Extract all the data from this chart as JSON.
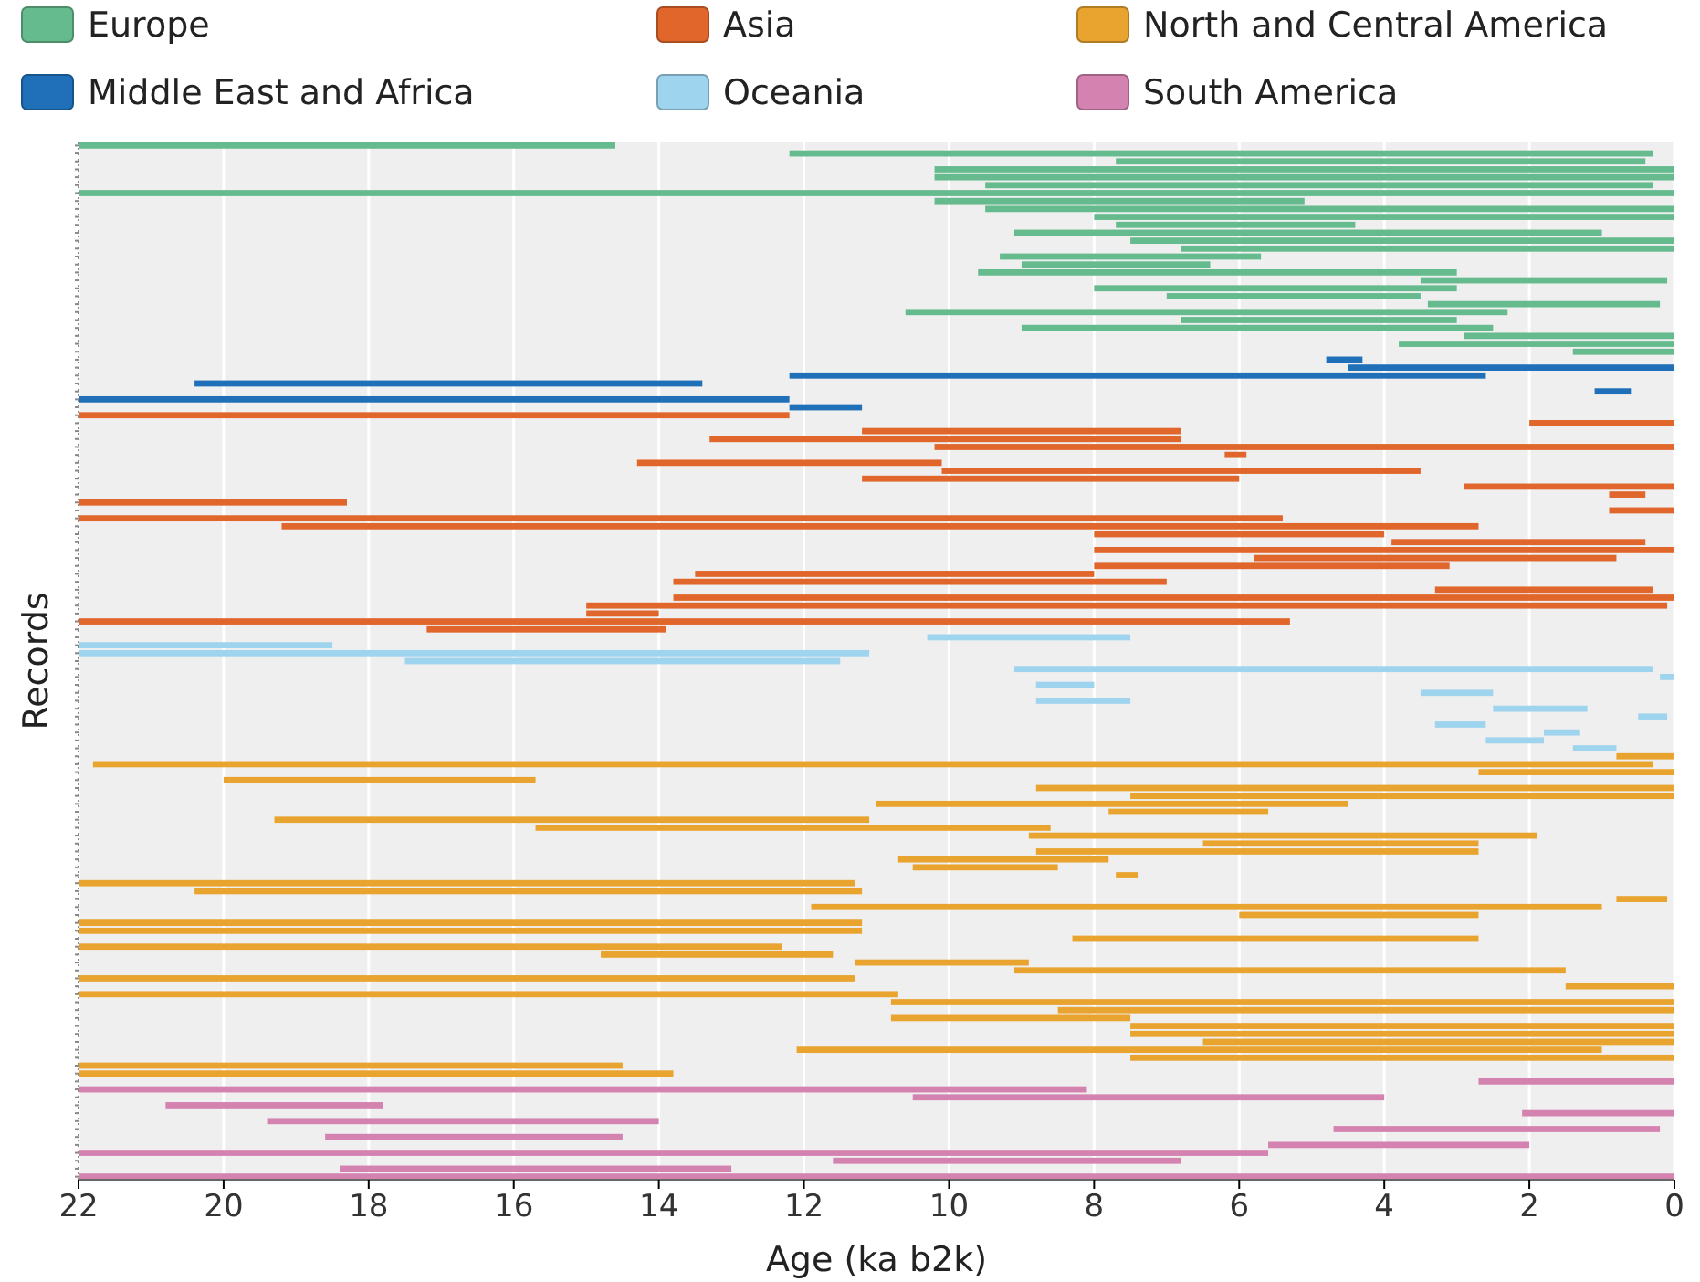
{
  "chart_data": {
    "type": "bar",
    "orientation": "horizontal",
    "xlabel": "Age (ka b2k)",
    "ylabel": "Records",
    "xlim": [
      22,
      0
    ],
    "xticks": [
      22,
      20,
      18,
      16,
      14,
      12,
      10,
      8,
      6,
      4,
      2,
      0
    ],
    "grid": "x",
    "legend": "top",
    "tick_labels": "x",
    "categories": [
      null,
      null,
      null,
      null,
      null,
      null,
      null,
      null,
      null,
      null,
      null,
      null,
      null,
      null,
      null,
      null,
      null,
      null,
      null,
      null,
      null,
      null,
      null,
      null,
      null,
      null,
      null,
      null,
      null,
      null,
      null,
      null,
      null,
      null,
      null,
      null,
      null,
      null,
      null,
      null,
      null,
      null,
      null,
      null,
      null,
      null,
      null,
      null,
      null,
      null,
      null,
      null,
      null,
      null,
      null,
      null,
      null,
      null,
      null,
      null,
      null,
      null,
      null,
      null,
      null,
      null,
      null,
      null,
      null,
      null,
      null,
      null,
      null,
      null,
      null,
      null,
      null,
      null,
      null,
      null,
      null,
      null,
      null,
      null,
      null,
      null,
      null,
      null,
      null,
      null,
      null,
      null,
      null,
      null,
      null,
      null,
      null,
      null,
      null,
      null,
      null,
      null,
      null,
      null,
      null,
      null,
      null,
      null,
      null,
      null,
      null,
      null,
      null,
      null,
      null,
      null,
      null,
      null,
      null,
      null,
      null,
      null,
      null,
      null,
      null,
      null,
      null,
      null,
      null,
      null,
      null
    ],
    "series": [
      {
        "name": "Europe",
        "color": "#66bb8e",
        "values": [
          7.4,
          11.9,
          7.3,
          10.2,
          10.2,
          9.2,
          22,
          5.1,
          9.5,
          8,
          3.3,
          8.1,
          7.5,
          6.8,
          3.6,
          2.6,
          6.6,
          3.4,
          5,
          3.5,
          3.2,
          8.3,
          3.8,
          6.5,
          2.9,
          3.8,
          1.4,
          null,
          null,
          null,
          null,
          null,
          null,
          null,
          null,
          null,
          null,
          null,
          null,
          null,
          null,
          null,
          null,
          null,
          null,
          null,
          null,
          null,
          null,
          null,
          null,
          null,
          null,
          null,
          null,
          null,
          null,
          null,
          null,
          null,
          null,
          null,
          null,
          null,
          null,
          null,
          null,
          null,
          null,
          null,
          null,
          null,
          null,
          null,
          null,
          null,
          null,
          null,
          null,
          null,
          null,
          null,
          null,
          null,
          null,
          null,
          null,
          null,
          null,
          null,
          null,
          null,
          null,
          null,
          null,
          null,
          null,
          null,
          null,
          null,
          null,
          null,
          null,
          null,
          null,
          null,
          null,
          null,
          null,
          null,
          null,
          null,
          null,
          null,
          null,
          null,
          null,
          null,
          null,
          null,
          null,
          null,
          null,
          null,
          null,
          null,
          null,
          null,
          null,
          null,
          null
        ],
        "base": [
          14.6,
          0.3,
          0.4,
          0,
          0,
          0.3,
          0,
          5.1,
          0,
          0,
          4.4,
          1,
          0,
          0,
          5.7,
          6.4,
          3,
          0.1,
          3,
          3.5,
          0.2,
          2.3,
          3,
          2.5,
          0,
          0,
          0,
          null,
          null,
          null,
          null,
          null,
          null,
          null,
          null,
          null,
          null,
          null,
          null,
          null,
          null,
          null,
          null,
          null,
          null,
          null,
          null,
          null,
          null,
          null,
          null,
          null,
          null,
          null,
          null,
          null,
          null,
          null,
          null,
          null,
          null,
          null,
          null,
          null,
          null,
          null,
          null,
          null,
          null,
          null,
          null,
          null,
          null,
          null,
          null,
          null,
          null,
          null,
          null,
          null,
          null,
          null,
          null,
          null,
          null,
          null,
          null,
          null,
          null,
          null,
          null,
          null,
          null,
          null,
          null,
          null,
          null,
          null,
          null,
          null,
          null,
          null,
          null,
          null,
          null,
          null,
          null,
          null,
          null,
          null,
          null,
          null,
          null,
          null,
          null,
          null,
          null,
          null,
          null,
          null,
          null,
          null,
          null,
          null,
          null,
          null,
          null,
          null,
          null,
          null,
          null
        ]
      },
      {
        "name": "Middle East and Africa",
        "color": "#1f70b8",
        "values": [
          null,
          null,
          null,
          null,
          null,
          null,
          null,
          null,
          null,
          null,
          null,
          null,
          null,
          null,
          null,
          null,
          null,
          null,
          null,
          null,
          null,
          null,
          null,
          null,
          null,
          null,
          null,
          0.5,
          4.5,
          9.6,
          7,
          0.5,
          9.8,
          1,
          null,
          null,
          null,
          null,
          null,
          null,
          null,
          null,
          null,
          null,
          null,
          null,
          null,
          null,
          null,
          null,
          null,
          null,
          null,
          null,
          null,
          null,
          null,
          null,
          null,
          null,
          null,
          null,
          null,
          null,
          null,
          null,
          null,
          null,
          null,
          null,
          null,
          null,
          null,
          null,
          null,
          null,
          null,
          null,
          null,
          null,
          null,
          null,
          null,
          null,
          null,
          null,
          null,
          null,
          null,
          null,
          null,
          null,
          null,
          null,
          null,
          null,
          null,
          null,
          null,
          null,
          null,
          null,
          null,
          null,
          null,
          null,
          null,
          null,
          null,
          null,
          null,
          null,
          null,
          null,
          null,
          null,
          null,
          null,
          null,
          null,
          null,
          null,
          null,
          null,
          null,
          null,
          null,
          null,
          null,
          null,
          null
        ],
        "base": [
          null,
          null,
          null,
          null,
          null,
          null,
          null,
          null,
          null,
          null,
          null,
          null,
          null,
          null,
          null,
          null,
          null,
          null,
          null,
          null,
          null,
          null,
          null,
          null,
          null,
          null,
          null,
          4.3,
          0,
          2.6,
          13.4,
          0.6,
          12.2,
          11.2,
          null,
          null,
          null,
          null,
          null,
          null,
          null,
          null,
          null,
          null,
          null,
          null,
          null,
          null,
          null,
          null,
          null,
          null,
          null,
          null,
          null,
          null,
          null,
          null,
          null,
          null,
          null,
          null,
          null,
          null,
          null,
          null,
          null,
          null,
          null,
          null,
          null,
          null,
          null,
          null,
          null,
          null,
          null,
          null,
          null,
          null,
          null,
          null,
          null,
          null,
          null,
          null,
          null,
          null,
          null,
          null,
          null,
          null,
          null,
          null,
          null,
          null,
          null,
          null,
          null,
          null,
          null,
          null,
          null,
          null,
          null,
          null,
          null,
          null,
          null,
          null,
          null,
          null,
          null,
          null,
          null,
          null,
          null,
          null,
          null,
          null,
          null,
          null,
          null,
          null,
          null,
          null,
          null,
          null,
          null,
          null,
          null
        ]
      },
      {
        "name": "Asia",
        "color": "#e0662b",
        "values": [
          null,
          null,
          null,
          null,
          null,
          null,
          null,
          null,
          null,
          null,
          null,
          null,
          null,
          null,
          null,
          null,
          null,
          null,
          null,
          null,
          null,
          null,
          null,
          null,
          null,
          null,
          null,
          null,
          null,
          null,
          null,
          null,
          null,
          null,
          9.8,
          2,
          4.4,
          6.5,
          10.2,
          0.3,
          4.2,
          6.6,
          5.2,
          2.9,
          0.5,
          3.7,
          0.9,
          16.6,
          16.5,
          4,
          3.5,
          8,
          5,
          4.9,
          5.5,
          6.8,
          3,
          13.8,
          14.9,
          1,
          16.7,
          3.3,
          null,
          null,
          null,
          null,
          null,
          null,
          null,
          null,
          null,
          null,
          null,
          null,
          null,
          null,
          null,
          null,
          null,
          null,
          null,
          null,
          null,
          null,
          null,
          null,
          null,
          null,
          null,
          null,
          null,
          null,
          null,
          null,
          null,
          null,
          null,
          null,
          null,
          null,
          null,
          null,
          null,
          null,
          null,
          null,
          null,
          null,
          null,
          null,
          null,
          null,
          null,
          null,
          null,
          null,
          null,
          null,
          null,
          null,
          null,
          null,
          null,
          null,
          null,
          null,
          null,
          null,
          null,
          null,
          null
        ],
        "base": [
          null,
          null,
          null,
          null,
          null,
          null,
          null,
          null,
          null,
          null,
          null,
          null,
          null,
          null,
          null,
          null,
          null,
          null,
          null,
          null,
          null,
          null,
          null,
          null,
          null,
          null,
          null,
          null,
          null,
          null,
          null,
          null,
          null,
          null,
          12.2,
          0,
          6.8,
          6.8,
          0,
          5.9,
          10.1,
          3.5,
          6,
          0,
          0.4,
          18.3,
          0,
          5.4,
          2.7,
          4,
          0.4,
          0,
          0.8,
          3.1,
          8,
          7,
          0.3,
          0,
          0.1,
          14,
          5.3,
          13.9,
          null,
          null,
          null,
          null,
          null,
          null,
          null,
          null,
          null,
          null,
          null,
          null,
          null,
          null,
          null,
          null,
          null,
          null,
          null,
          null,
          null,
          null,
          null,
          null,
          null,
          null,
          null,
          null,
          null,
          null,
          null,
          null,
          null,
          null,
          null,
          null,
          null,
          null,
          null,
          null,
          null,
          null,
          null,
          null,
          null,
          null,
          null,
          null,
          null,
          null,
          null,
          null,
          null,
          null,
          null,
          null,
          null,
          null,
          null,
          null,
          null,
          null,
          null,
          null,
          null,
          null,
          null,
          null,
          null
        ]
      },
      {
        "name": "Oceania",
        "color": "#9fd4ee",
        "values": [
          null,
          null,
          null,
          null,
          null,
          null,
          null,
          null,
          null,
          null,
          null,
          null,
          null,
          null,
          null,
          null,
          null,
          null,
          null,
          null,
          null,
          null,
          null,
          null,
          null,
          null,
          null,
          null,
          null,
          null,
          null,
          null,
          null,
          null,
          null,
          null,
          null,
          null,
          null,
          null,
          null,
          null,
          null,
          null,
          null,
          null,
          null,
          null,
          null,
          null,
          null,
          null,
          null,
          null,
          null,
          null,
          null,
          null,
          null,
          null,
          null,
          null,
          2.8,
          3.5,
          10.9,
          6,
          8.8,
          0.2,
          0.8,
          1,
          1.3,
          1.3,
          0.4,
          0.7,
          0.5,
          0.8,
          0.6,
          null,
          null,
          null,
          null,
          null,
          null,
          null,
          null,
          null,
          null,
          null,
          null,
          null,
          null,
          null,
          null,
          null,
          null,
          null,
          null,
          null,
          null,
          null,
          null,
          null,
          null,
          null,
          null,
          null,
          null,
          null,
          null,
          null,
          null,
          null,
          null,
          null,
          null,
          null,
          null,
          null,
          null,
          null,
          null,
          null,
          null,
          null,
          null,
          null,
          null,
          null,
          null,
          null,
          null
        ],
        "base": [
          null,
          null,
          null,
          null,
          null,
          null,
          null,
          null,
          null,
          null,
          null,
          null,
          null,
          null,
          null,
          null,
          null,
          null,
          null,
          null,
          null,
          null,
          null,
          null,
          null,
          null,
          null,
          null,
          null,
          null,
          null,
          null,
          null,
          null,
          null,
          null,
          null,
          null,
          null,
          null,
          null,
          null,
          null,
          null,
          null,
          null,
          null,
          null,
          null,
          null,
          null,
          null,
          null,
          null,
          null,
          null,
          null,
          null,
          null,
          null,
          null,
          null,
          7.5,
          18.5,
          11.1,
          11.5,
          0.3,
          0,
          8,
          2.5,
          7.5,
          1.2,
          0.1,
          2.6,
          1.3,
          1.8,
          0.8,
          null,
          null,
          null,
          null,
          null,
          null,
          null,
          null,
          null,
          null,
          null,
          null,
          null,
          null,
          null,
          null,
          null,
          null,
          null,
          null,
          null,
          null,
          null,
          null,
          null,
          null,
          null,
          null,
          null,
          null,
          null,
          null,
          null,
          null,
          null,
          null,
          null,
          null,
          null,
          null,
          null,
          null,
          null,
          null,
          null,
          null,
          null,
          null,
          null,
          null,
          null,
          null,
          null,
          null
        ]
      },
      {
        "name": "North and Central America",
        "color": "#e9a430",
        "values": [
          null,
          null,
          null,
          null,
          null,
          null,
          null,
          null,
          null,
          null,
          null,
          null,
          null,
          null,
          null,
          null,
          null,
          null,
          null,
          null,
          null,
          null,
          null,
          null,
          null,
          null,
          null,
          null,
          null,
          null,
          null,
          null,
          null,
          null,
          null,
          null,
          null,
          null,
          null,
          null,
          null,
          null,
          null,
          null,
          null,
          null,
          null,
          null,
          null,
          null,
          null,
          null,
          null,
          null,
          null,
          null,
          null,
          null,
          null,
          null,
          null,
          null,
          null,
          null,
          null,
          null,
          null,
          null,
          null,
          null,
          null,
          null,
          null,
          null,
          null,
          null,
          null,
          0.8,
          21.5,
          2.7,
          4.3,
          8.8,
          7.5,
          6.5,
          2.2,
          8.2,
          7.1,
          7,
          3.8,
          6.1,
          2.9,
          2,
          0.3,
          10.7,
          9.2,
          0.7,
          10.9,
          3.3,
          10.8,
          10.8,
          5.6,
          9.7,
          3.2,
          2.4,
          7.6,
          10.7,
          1.5,
          11.3,
          10.8,
          8.5,
          3.3,
          7.5,
          7.5,
          6.5,
          11.1,
          7.5,
          7.5,
          8.2,
          null,
          null,
          null,
          null,
          null,
          null,
          null,
          null,
          null,
          null,
          null,
          null,
          null
        ],
        "base": [
          null,
          null,
          null,
          null,
          null,
          null,
          null,
          null,
          null,
          null,
          null,
          null,
          null,
          null,
          null,
          null,
          null,
          null,
          null,
          null,
          null,
          null,
          null,
          null,
          null,
          null,
          null,
          null,
          null,
          null,
          null,
          null,
          null,
          null,
          null,
          null,
          null,
          null,
          null,
          null,
          null,
          null,
          null,
          null,
          null,
          null,
          null,
          null,
          null,
          null,
          null,
          null,
          null,
          null,
          null,
          null,
          null,
          null,
          null,
          null,
          null,
          null,
          null,
          null,
          null,
          null,
          null,
          null,
          null,
          null,
          null,
          null,
          null,
          null,
          null,
          null,
          null,
          0,
          0.3,
          0,
          15.7,
          0,
          0,
          4.5,
          5.6,
          11.1,
          8.6,
          1.9,
          2.7,
          2.7,
          7.8,
          8.5,
          7.4,
          11.3,
          11.2,
          0.1,
          1,
          2.7,
          11.2,
          11.2,
          2.7,
          12.3,
          11.6,
          8.9,
          1.5,
          11.3,
          0,
          10.7,
          0,
          0,
          7.5,
          0,
          0,
          0,
          1,
          0,
          14.5,
          13.8,
          null,
          null,
          null,
          null,
          null,
          null,
          null,
          null,
          null,
          null,
          null,
          null,
          null
        ]
      },
      {
        "name": "South America",
        "color": "#d483b0",
        "values": [
          null,
          null,
          null,
          null,
          null,
          null,
          null,
          null,
          null,
          null,
          null,
          null,
          null,
          null,
          null,
          null,
          null,
          null,
          null,
          null,
          null,
          null,
          null,
          null,
          null,
          null,
          null,
          null,
          null,
          null,
          null,
          null,
          null,
          null,
          null,
          null,
          null,
          null,
          null,
          null,
          null,
          null,
          null,
          null,
          null,
          null,
          null,
          null,
          null,
          null,
          null,
          null,
          null,
          null,
          null,
          null,
          null,
          null,
          null,
          null,
          null,
          null,
          null,
          null,
          null,
          null,
          null,
          null,
          null,
          null,
          null,
          null,
          null,
          null,
          null,
          null,
          null,
          null,
          null,
          null,
          null,
          null,
          null,
          null,
          null,
          null,
          null,
          null,
          null,
          null,
          null,
          null,
          null,
          null,
          null,
          null,
          null,
          null,
          null,
          null,
          null,
          null,
          null,
          null,
          null,
          null,
          null,
          null,
          null,
          null,
          null,
          null,
          null,
          null,
          null,
          null,
          null,
          null,
          2.7,
          13.9,
          6.5,
          3,
          2.1,
          5.4,
          4.5,
          4.1,
          3.6,
          16.4,
          4.8,
          5.4,
          22
        ],
        "base": [
          null,
          null,
          null,
          null,
          null,
          null,
          null,
          null,
          null,
          null,
          null,
          null,
          null,
          null,
          null,
          null,
          null,
          null,
          null,
          null,
          null,
          null,
          null,
          null,
          null,
          null,
          null,
          null,
          null,
          null,
          null,
          null,
          null,
          null,
          null,
          null,
          null,
          null,
          null,
          null,
          null,
          null,
          null,
          null,
          null,
          null,
          null,
          null,
          null,
          null,
          null,
          null,
          null,
          null,
          null,
          null,
          null,
          null,
          null,
          null,
          null,
          null,
          null,
          null,
          null,
          null,
          null,
          null,
          null,
          null,
          null,
          null,
          null,
          null,
          null,
          null,
          null,
          null,
          null,
          null,
          null,
          null,
          null,
          null,
          null,
          null,
          null,
          null,
          null,
          null,
          null,
          null,
          null,
          null,
          null,
          null,
          null,
          null,
          null,
          null,
          null,
          null,
          null,
          null,
          null,
          null,
          null,
          null,
          null,
          null,
          null,
          null,
          null,
          null,
          null,
          null,
          null,
          null,
          0,
          8.1,
          4,
          17.8,
          0,
          14,
          0.2,
          14.5,
          2,
          5.6,
          6.8,
          13,
          0
        ]
      }
    ]
  }
}
